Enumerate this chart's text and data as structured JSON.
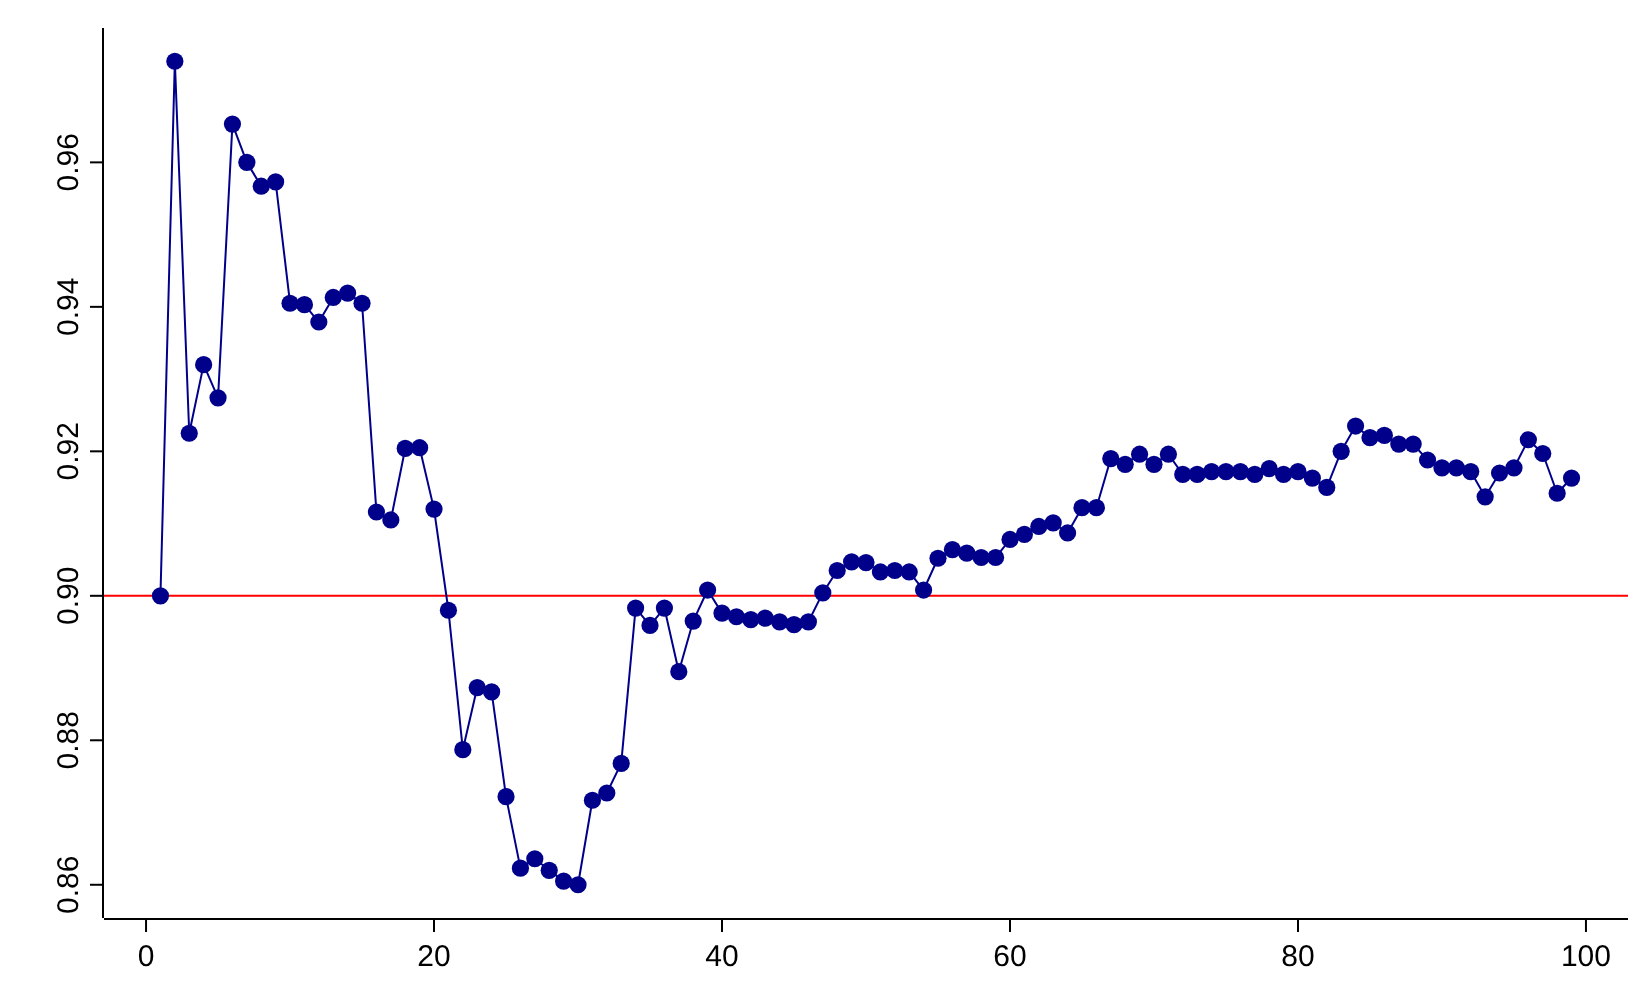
{
  "chart_data": {
    "type": "line",
    "x": [
      1,
      2,
      3,
      4,
      5,
      6,
      7,
      8,
      9,
      10,
      11,
      12,
      13,
      14,
      15,
      16,
      17,
      18,
      19,
      20,
      21,
      22,
      23,
      24,
      25,
      26,
      27,
      28,
      29,
      30,
      31,
      32,
      33,
      34,
      35,
      36,
      37,
      38,
      39,
      40,
      41,
      42,
      43,
      44,
      45,
      46,
      47,
      48,
      49,
      50,
      51,
      52,
      53,
      54,
      55,
      56,
      57,
      58,
      59,
      60,
      61,
      62,
      63,
      64,
      65,
      66,
      67,
      68,
      69,
      70,
      71,
      72,
      73,
      74,
      75,
      76,
      77,
      78,
      79,
      80,
      81,
      82,
      83,
      84,
      85,
      86,
      87,
      88,
      89,
      90,
      91,
      92,
      93,
      94,
      95,
      96,
      97,
      98,
      99
    ],
    "series": [
      {
        "color": "#00008b",
        "values": [
          0.9,
          0.974,
          0.9225,
          0.932,
          0.9274,
          0.9653,
          0.96,
          0.9567,
          0.9573,
          0.9405,
          0.9403,
          0.9379,
          0.9413,
          0.9419,
          0.9405,
          0.9116,
          0.9105,
          0.9204,
          0.9205,
          0.912,
          0.898,
          0.8787,
          0.8873,
          0.8867,
          0.8722,
          0.8623,
          0.8636,
          0.862,
          0.8605,
          0.86,
          0.8717,
          0.8727,
          0.8768,
          0.8983,
          0.8959,
          0.8983,
          0.8895,
          0.8965,
          0.9008,
          0.8976,
          0.8971,
          0.8967,
          0.8969,
          0.8964,
          0.896,
          0.8964,
          0.9004,
          0.9035,
          0.9047,
          0.9046,
          0.9033,
          0.9035,
          0.9033,
          0.9008,
          0.9052,
          0.9064,
          0.9059,
          0.9053,
          0.9053,
          0.9078,
          0.9085,
          0.9096,
          0.9101,
          0.9087,
          0.9122,
          0.9122,
          0.919,
          0.9182,
          0.9196,
          0.9182,
          0.9196,
          0.9168,
          0.9168,
          0.9172,
          0.9172,
          0.9172,
          0.9168,
          0.9176,
          0.9168,
          0.9172,
          0.9163,
          0.915,
          0.92,
          0.9235,
          0.9219,
          0.9222,
          0.921,
          0.921,
          0.9188,
          0.9177,
          0.9177,
          0.9172,
          0.9137,
          0.917,
          0.9177,
          0.9216,
          0.9197,
          0.9142,
          0.9163
        ]
      }
    ],
    "xlim": [
      -2.92,
      102.92
    ],
    "xticks": [
      0,
      20,
      40,
      60,
      80,
      100
    ],
    "ylim": [
      0.8554,
      0.9786
    ],
    "yticks": [
      {
        "value": 0.86,
        "label": "0.86"
      },
      {
        "value": 0.88,
        "label": "0.88"
      },
      {
        "value": 0.9,
        "label": "0.90"
      },
      {
        "value": 0.92,
        "label": "0.92"
      },
      {
        "value": 0.94,
        "label": "0.94"
      },
      {
        "value": 0.96,
        "label": "0.96"
      }
    ],
    "ref_lines": [
      {
        "axis": "y",
        "value": 0.9,
        "color": "#ff0000"
      }
    ],
    "marker": "circle"
  }
}
